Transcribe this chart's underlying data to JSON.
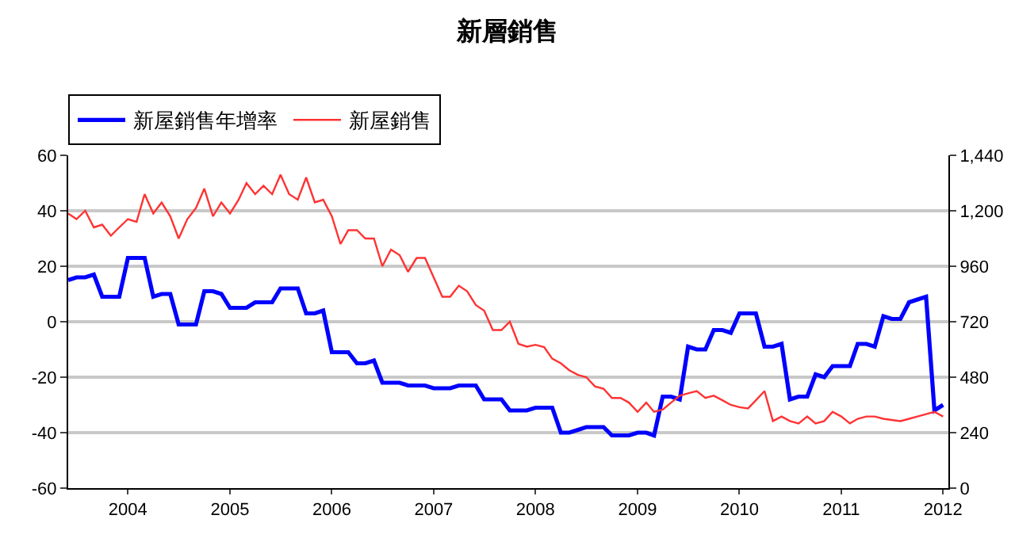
{
  "chart_data": {
    "type": "line",
    "title": "新層銷售",
    "x": [
      "2003-06",
      "2003-07",
      "2003-08",
      "2003-09",
      "2003-10",
      "2003-11",
      "2003-12",
      "2004-01",
      "2004-02",
      "2004-03",
      "2004-04",
      "2004-05",
      "2004-06",
      "2004-07",
      "2004-08",
      "2004-09",
      "2004-10",
      "2004-11",
      "2004-12",
      "2005-01",
      "2005-02",
      "2005-03",
      "2005-04",
      "2005-05",
      "2005-06",
      "2005-07",
      "2005-08",
      "2005-09",
      "2005-10",
      "2005-11",
      "2005-12",
      "2006-01",
      "2006-02",
      "2006-03",
      "2006-04",
      "2006-05",
      "2006-06",
      "2006-07",
      "2006-08",
      "2006-09",
      "2006-10",
      "2006-11",
      "2006-12",
      "2007-01",
      "2007-02",
      "2007-03",
      "2007-04",
      "2007-05",
      "2007-06",
      "2007-07",
      "2007-08",
      "2007-09",
      "2007-10",
      "2007-11",
      "2007-12",
      "2008-01",
      "2008-02",
      "2008-03",
      "2008-04",
      "2008-05",
      "2008-06",
      "2008-07",
      "2008-08",
      "2008-09",
      "2008-10",
      "2008-11",
      "2008-12",
      "2009-01",
      "2009-02",
      "2009-03",
      "2009-04",
      "2009-05",
      "2009-06",
      "2009-07",
      "2009-08",
      "2009-09",
      "2009-10",
      "2009-11",
      "2009-12",
      "2010-01",
      "2010-02",
      "2010-03",
      "2010-04",
      "2010-05",
      "2010-06",
      "2010-07",
      "2010-08",
      "2010-09",
      "2010-10",
      "2010-11",
      "2010-12",
      "2011-01",
      "2011-02",
      "2011-03",
      "2011-04",
      "2011-05",
      "2011-06",
      "2011-07",
      "2011-08",
      "2011-09",
      "2011-10",
      "2011-11",
      "2011-12",
      "2012-01"
    ],
    "series": [
      {
        "name": "新屋銷售年增率",
        "color": "#0000ff",
        "values": [
          15,
          16,
          16,
          17,
          9,
          9,
          9,
          23,
          23,
          23,
          9,
          10,
          10,
          -1,
          -1,
          -1,
          11,
          11,
          10,
          5,
          5,
          5,
          7,
          7,
          7,
          12,
          12,
          12,
          3,
          3,
          4,
          -11,
          -11,
          -11,
          -15,
          -15,
          -14,
          -22,
          -22,
          -22,
          -23,
          -23,
          -23,
          -24,
          -24,
          -24,
          -23,
          -23,
          -23,
          -28,
          -28,
          -28,
          -32,
          -32,
          -32,
          -31,
          -31,
          -31,
          -40,
          -40,
          -39,
          -38,
          -38,
          -38,
          -41,
          -41,
          -41,
          -40,
          -40,
          -41,
          -27,
          -27,
          -28,
          -9,
          -10,
          -10,
          -3,
          -3,
          -4,
          3,
          3,
          3,
          -9,
          -9,
          -8,
          -28,
          -27,
          -27,
          -19,
          -20,
          -16,
          -16,
          -16,
          -8,
          -8,
          -9,
          2,
          1,
          1,
          7,
          8,
          9,
          -32,
          -30
        ]
      },
      {
        "name": "新屋銷售",
        "color": "#ff3333",
        "axis": "y2",
        "values": [
          1188,
          1164,
          1200,
          1128,
          1140,
          1092,
          1128,
          1164,
          1152,
          1272,
          1188,
          1236,
          1176,
          1080,
          1164,
          1212,
          1296,
          1176,
          1236,
          1188,
          1248,
          1320,
          1272,
          1308,
          1272,
          1356,
          1272,
          1248,
          1344,
          1236,
          1248,
          1176,
          1056,
          1116,
          1116,
          1080,
          1080,
          960,
          1032,
          1008,
          936,
          996,
          996,
          912,
          828,
          828,
          876,
          852,
          792,
          768,
          684,
          684,
          720,
          624,
          612,
          620,
          610,
          560,
          540,
          510,
          490,
          480,
          440,
          430,
          390,
          390,
          370,
          330,
          370,
          330,
          340,
          370,
          400,
          410,
          420,
          390,
          400,
          380,
          360,
          350,
          345,
          380,
          420,
          290,
          310,
          290,
          280,
          310,
          280,
          290,
          330,
          310,
          280,
          300,
          310,
          310,
          300,
          295,
          290,
          300,
          310,
          320,
          330,
          310
        ]
      }
    ],
    "xlim": [
      "2003-06-01",
      "2012-01-20"
    ],
    "xticks": [
      "2004",
      "2005",
      "2006",
      "2007",
      "2008",
      "2009",
      "2010",
      "2011",
      "2012"
    ],
    "ylim": [
      -60,
      60
    ],
    "yticks": [
      -60,
      -40,
      -20,
      0,
      20,
      40,
      60
    ],
    "y2lim": [
      0,
      1440
    ],
    "y2ticks": [
      0,
      240,
      480,
      720,
      960,
      {
        "value": 1200,
        "label": "1,200"
      },
      {
        "value": 1440,
        "label": "1,440"
      }
    ],
    "grid": "y",
    "legend": "top left",
    "marker": "none",
    "line_style": "solid"
  }
}
